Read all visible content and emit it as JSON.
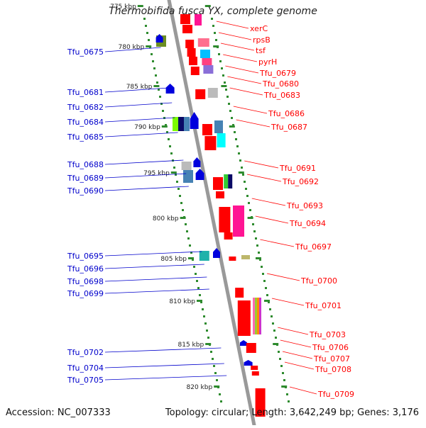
{
  "title": "Thermobifida fusca YX, complete genome",
  "accession": "Accession: NC_007333",
  "summary": "Topology: circular; Length: 3,642,249 bp; Genes: 3,176",
  "colors": {
    "forward_label": "#0000cc",
    "reverse_label": "#ff0000",
    "tick": "#2e8b2e",
    "backbone": "#999999"
  },
  "ticks": [
    {
      "label": "775 kbp"
    },
    {
      "label": "780 kbp"
    },
    {
      "label": "785 kbp"
    },
    {
      "label": "790 kbp"
    },
    {
      "label": "795 kbp"
    },
    {
      "label": "800 kbp"
    },
    {
      "label": "805 kbp"
    },
    {
      "label": "810 kbp"
    },
    {
      "label": "815 kbp"
    },
    {
      "label": "820 kbp"
    }
  ],
  "forward_genes": [
    {
      "label": "Tfu_0675"
    },
    {
      "label": "Tfu_0681"
    },
    {
      "label": "Tfu_0682"
    },
    {
      "label": "Tfu_0684"
    },
    {
      "label": "Tfu_0685"
    },
    {
      "label": "Tfu_0688"
    },
    {
      "label": "Tfu_0689"
    },
    {
      "label": "Tfu_0690"
    },
    {
      "label": "Tfu_0695"
    },
    {
      "label": "Tfu_0696"
    },
    {
      "label": "Tfu_0698"
    },
    {
      "label": "Tfu_0699"
    },
    {
      "label": "Tfu_0702"
    },
    {
      "label": "Tfu_0704"
    },
    {
      "label": "Tfu_0705"
    }
  ],
  "reverse_genes": [
    {
      "label": "xerC"
    },
    {
      "label": "rpsB"
    },
    {
      "label": "tsf"
    },
    {
      "label": "pyrH"
    },
    {
      "label": "Tfu_0679"
    },
    {
      "label": "Tfu_0680"
    },
    {
      "label": "Tfu_0683"
    },
    {
      "label": "Tfu_0686"
    },
    {
      "label": "Tfu_0687"
    },
    {
      "label": "Tfu_0691"
    },
    {
      "label": "Tfu_0692"
    },
    {
      "label": "Tfu_0693"
    },
    {
      "label": "Tfu_0694"
    },
    {
      "label": "Tfu_0697"
    },
    {
      "label": "Tfu_0700"
    },
    {
      "label": "Tfu_0701"
    },
    {
      "label": "Tfu_0703"
    },
    {
      "label": "Tfu_0706"
    },
    {
      "label": "Tfu_0707"
    },
    {
      "label": "Tfu_0708"
    },
    {
      "label": "Tfu_0709"
    }
  ]
}
